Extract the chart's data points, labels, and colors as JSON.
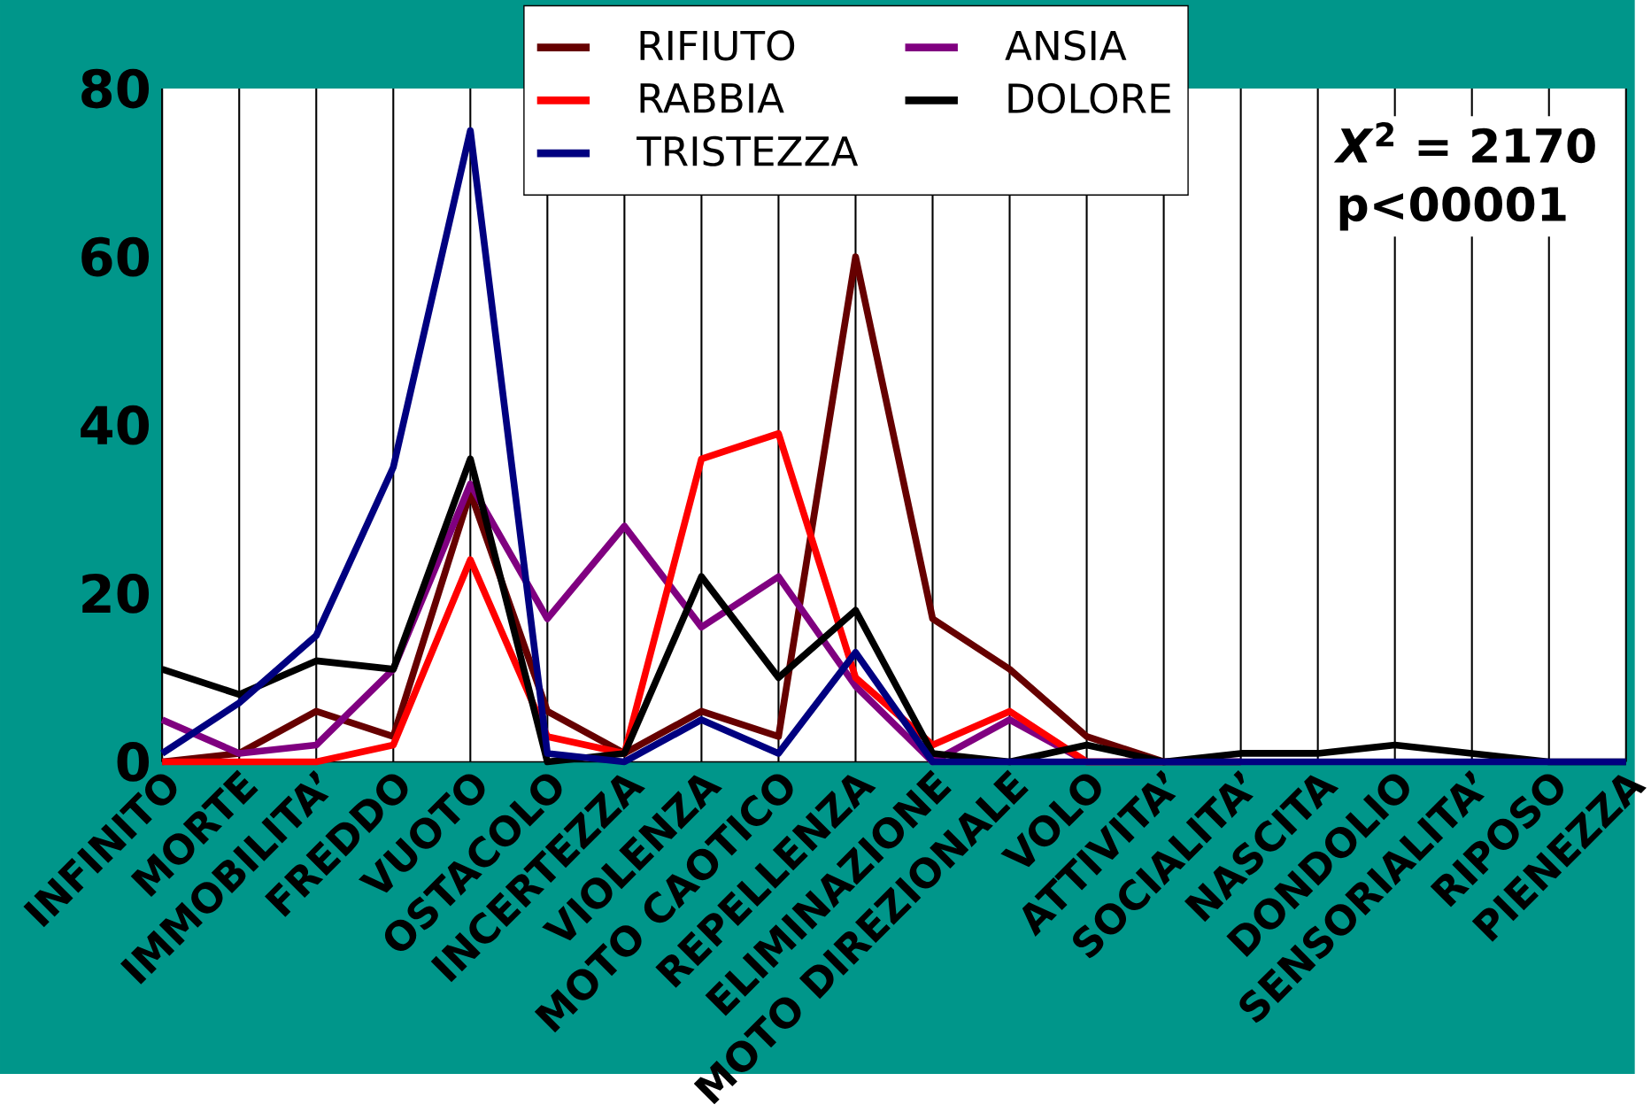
{
  "chart_data": {
    "type": "line",
    "categories": [
      "INFINITO",
      "MORTE",
      "IMMOBILITA’",
      "FREDDO",
      "VUOTO",
      "OSTACOLO",
      "INCERTEZZA",
      "VIOLENZA",
      "MOTO CAOTICO",
      "REPELLENZA",
      "ELIMINAZIONE",
      "MOTO DIREZIONALE",
      "VOLO",
      "ATTIVITA’",
      "SOCIALITA’",
      "NASCITA",
      "DONDOLIO",
      "SENSORIALITA’",
      "RIPOSO",
      "PIENEZZA"
    ],
    "series": [
      {
        "name": "RIFIUTO",
        "color": "#660000",
        "values": [
          0,
          1,
          6,
          3,
          32,
          6,
          1,
          6,
          3,
          60,
          17,
          11,
          3,
          0,
          0,
          null,
          null,
          null,
          null,
          null
        ]
      },
      {
        "name": "ANSIA",
        "color": "#800080",
        "values": [
          5,
          1,
          2,
          11,
          33,
          17,
          28,
          16,
          22,
          9,
          0,
          5,
          0,
          0,
          0,
          null,
          null,
          null,
          null,
          null
        ]
      },
      {
        "name": "RABBIA",
        "color": "#ff0000",
        "values": [
          0,
          0,
          0,
          2,
          24,
          3,
          1,
          36,
          39,
          10,
          2,
          6,
          0,
          0,
          null,
          null,
          null,
          null,
          null,
          null
        ]
      },
      {
        "name": "DOLORE",
        "color": "#000000",
        "values": [
          11,
          8,
          12,
          11,
          36,
          0,
          1,
          22,
          10,
          18,
          1,
          0,
          2,
          0,
          1,
          1,
          2,
          1,
          0,
          0
        ]
      },
      {
        "name": "TRISTEZZA",
        "color": "#000080",
        "values": [
          1,
          7,
          15,
          35,
          75,
          1,
          0,
          5,
          1,
          13,
          0,
          0,
          0,
          0,
          0,
          0,
          0,
          0,
          0,
          0
        ]
      }
    ],
    "ylim": [
      0,
      80
    ],
    "yticks": [
      0,
      20,
      40,
      60,
      80
    ],
    "grid": "x",
    "legend": "top",
    "marker": "none",
    "line_style": "solid",
    "annotations": [
      "*X*$^{2}$ = 2170",
      "p<00001"
    ]
  }
}
